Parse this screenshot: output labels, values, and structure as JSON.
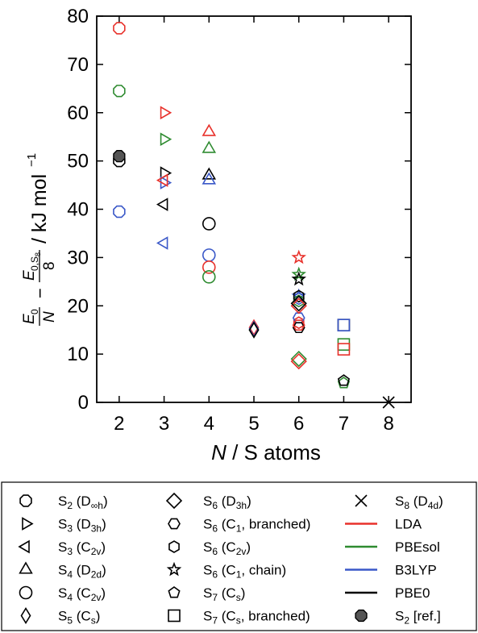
{
  "chart_data": {
    "type": "scatter",
    "xlabel": "N / S atoms",
    "ylabel": "E0/N − E0,S8/8 / kJ mol−1",
    "xlim": [
      1.5,
      8.5
    ],
    "ylim": [
      0,
      80
    ],
    "xticks": [
      2,
      3,
      4,
      5,
      6,
      7,
      8
    ],
    "yticks": [
      0,
      10,
      20,
      30,
      40,
      50,
      60,
      70,
      80
    ],
    "grid": false,
    "legend_position": "bottom",
    "colors": {
      "LDA": "#e8312b",
      "PBEsol": "#2e8b30",
      "B3LYP": "#3a58c8",
      "PBE0": "#000000",
      "ref": "#555555"
    },
    "functionals": [
      "LDA",
      "PBEsol",
      "B3LYP",
      "PBE0"
    ],
    "structures": [
      {
        "key": "S2_Dinfh",
        "marker": "octagon",
        "name": "S2 (D∞h)"
      },
      {
        "key": "S3_D3h",
        "marker": "triangle-right",
        "name": "S3 (D3h)"
      },
      {
        "key": "S3_C2v",
        "marker": "triangle-left",
        "name": "S3 (C2v)"
      },
      {
        "key": "S4_D2d",
        "marker": "triangle-up",
        "name": "S4 (D2d)"
      },
      {
        "key": "S4_C2v",
        "marker": "circle",
        "name": "S4 (C2v)"
      },
      {
        "key": "S5_Cs",
        "marker": "thin-diamond",
        "name": "S5 (Cs)"
      },
      {
        "key": "S6_D3h",
        "marker": "diamond",
        "name": "S6 (D3h)"
      },
      {
        "key": "S6_C1_branched",
        "marker": "hexagon-flat",
        "name": "S6 (C1, branched)"
      },
      {
        "key": "S6_C2v",
        "marker": "hexagon-pointy",
        "name": "S6 (C2v)"
      },
      {
        "key": "S6_C1_chain",
        "marker": "star",
        "name": "S6 (C1, chain)"
      },
      {
        "key": "S7_Cs",
        "marker": "pentagon",
        "name": "S7 (Cs)"
      },
      {
        "key": "S7_Cs_branched",
        "marker": "square",
        "name": "S7 (Cs, branched)"
      },
      {
        "key": "S8_D4d",
        "marker": "x",
        "name": "S8 (D4d)"
      },
      {
        "key": "S2_ref",
        "marker": "octagon-filled",
        "name": "S2 [ref.]"
      }
    ],
    "series": [
      {
        "structure": "S2_Dinfh",
        "functional": "LDA",
        "x": 2,
        "y": 77.5
      },
      {
        "structure": "S2_Dinfh",
        "functional": "PBEsol",
        "x": 2,
        "y": 64.5
      },
      {
        "structure": "S2_Dinfh",
        "functional": "PBE0",
        "x": 2,
        "y": 50.0
      },
      {
        "structure": "S2_Dinfh",
        "functional": "B3LYP",
        "x": 2,
        "y": 39.5
      },
      {
        "structure": "S2_ref",
        "functional": "ref",
        "x": 2,
        "y": 51.0
      },
      {
        "structure": "S3_D3h",
        "functional": "LDA",
        "x": 3,
        "y": 60.0
      },
      {
        "structure": "S3_D3h",
        "functional": "PBEsol",
        "x": 3,
        "y": 54.5
      },
      {
        "structure": "S3_D3h",
        "functional": "PBE0",
        "x": 3,
        "y": 47.5
      },
      {
        "structure": "S3_D3h",
        "functional": "B3LYP",
        "x": 3,
        "y": 45.5
      },
      {
        "structure": "S3_C2v",
        "functional": "LDA",
        "x": 3,
        "y": 46.0
      },
      {
        "structure": "S3_C2v",
        "functional": "PBE0",
        "x": 3,
        "y": 41.0
      },
      {
        "structure": "S3_C2v",
        "functional": "B3LYP",
        "x": 3,
        "y": 33.0
      },
      {
        "structure": "S4_D2d",
        "functional": "LDA",
        "x": 4,
        "y": 56.0
      },
      {
        "structure": "S4_D2d",
        "functional": "PBEsol",
        "x": 4,
        "y": 52.5
      },
      {
        "structure": "S4_D2d",
        "functional": "PBE0",
        "x": 4,
        "y": 47.0
      },
      {
        "structure": "S4_D2d",
        "functional": "B3LYP",
        "x": 4,
        "y": 46.0
      },
      {
        "structure": "S4_C2v",
        "functional": "PBE0",
        "x": 4,
        "y": 37.0
      },
      {
        "structure": "S4_C2v",
        "functional": "B3LYP",
        "x": 4,
        "y": 30.5
      },
      {
        "structure": "S4_C2v",
        "functional": "LDA",
        "x": 4,
        "y": 28.0
      },
      {
        "structure": "S4_C2v",
        "functional": "PBEsol",
        "x": 4,
        "y": 26.0
      },
      {
        "structure": "S5_Cs",
        "functional": "LDA",
        "x": 5,
        "y": 15.5
      },
      {
        "structure": "S5_Cs",
        "functional": "PBEsol",
        "x": 5,
        "y": 15.0
      },
      {
        "structure": "S5_Cs",
        "functional": "B3LYP",
        "x": 5,
        "y": 15.2
      },
      {
        "structure": "S5_Cs",
        "functional": "PBE0",
        "x": 5,
        "y": 15.0
      },
      {
        "structure": "S6_C1_chain",
        "functional": "LDA",
        "x": 6,
        "y": 30.0
      },
      {
        "structure": "S6_C1_chain",
        "functional": "PBEsol",
        "x": 6,
        "y": 26.5
      },
      {
        "structure": "S6_C1_chain",
        "functional": "PBE0",
        "x": 6,
        "y": 25.5
      },
      {
        "structure": "S6_C1_chain",
        "functional": "B3LYP",
        "x": 6,
        "y": 22.0
      },
      {
        "structure": "S6_C2v",
        "functional": "B3LYP",
        "x": 6,
        "y": 21.5
      },
      {
        "structure": "S6_C2v",
        "functional": "PBEsol",
        "x": 6,
        "y": 21.0
      },
      {
        "structure": "S6_C2v",
        "functional": "PBE0",
        "x": 6,
        "y": 22.0
      },
      {
        "structure": "S6_C2v",
        "functional": "LDA",
        "x": 6,
        "y": 16.5
      },
      {
        "structure": "S6_C1_branched",
        "functional": "B3LYP",
        "x": 6,
        "y": 17.5
      },
      {
        "structure": "S6_C1_branched",
        "functional": "PBE0",
        "x": 6,
        "y": 15.5
      },
      {
        "structure": "S6_C1_branched",
        "functional": "LDA",
        "x": 6,
        "y": 16.0
      },
      {
        "structure": "S6_D3h",
        "functional": "LDA",
        "x": 6,
        "y": 20.0
      },
      {
        "structure": "S6_D3h",
        "functional": "PBE0",
        "x": 6,
        "y": 20.5
      },
      {
        "structure": "S6_D3h",
        "functional": "PBEsol",
        "x": 6,
        "y": 9.0
      },
      {
        "structure": "S6_D3h",
        "functional": "LDA",
        "x": 6,
        "y": 8.5
      },
      {
        "structure": "S7_Cs_branched",
        "functional": "PBE0",
        "x": 7,
        "y": 16.0
      },
      {
        "structure": "S7_Cs_branched",
        "functional": "B3LYP",
        "x": 7,
        "y": 16.0
      },
      {
        "structure": "S7_Cs_branched",
        "functional": "PBEsol",
        "x": 7,
        "y": 12.0
      },
      {
        "structure": "S7_Cs_branched",
        "functional": "LDA",
        "x": 7,
        "y": 11.0
      },
      {
        "structure": "S7_Cs",
        "functional": "PBEsol",
        "x": 7,
        "y": 4.0
      },
      {
        "structure": "S7_Cs",
        "functional": "PBE0",
        "x": 7,
        "y": 4.5
      },
      {
        "structure": "S8_D4d",
        "functional": "PBE0",
        "x": 8,
        "y": 0.0
      }
    ]
  },
  "legend": {
    "columns": [
      [
        {
          "marker": "octagon",
          "base": "S",
          "sub": "2",
          "rest": " (D",
          "sym": "∞h",
          "close": ")"
        },
        {
          "marker": "triangle-right",
          "base": "S",
          "sub": "3",
          "rest": " (D",
          "sym": "3h",
          "close": ")"
        },
        {
          "marker": "triangle-left",
          "base": "S",
          "sub": "3",
          "rest": " (C",
          "sym": "2v",
          "close": ")"
        },
        {
          "marker": "triangle-up",
          "base": "S",
          "sub": "4",
          "rest": " (D",
          "sym": "2d",
          "close": ")"
        },
        {
          "marker": "circle",
          "base": "S",
          "sub": "4",
          "rest": " (C",
          "sym": "2v",
          "close": ")"
        },
        {
          "marker": "thin-diamond",
          "base": "S",
          "sub": "5",
          "rest": " (C",
          "sym": "s",
          "close": ")"
        }
      ],
      [
        {
          "marker": "diamond",
          "base": "S",
          "sub": "6",
          "rest": " (D",
          "sym": "3h",
          "close": ")"
        },
        {
          "marker": "hexagon-flat",
          "base": "S",
          "sub": "6",
          "rest": " (C",
          "sym": "1",
          "close": ", branched)"
        },
        {
          "marker": "hexagon-pointy",
          "base": "S",
          "sub": "6",
          "rest": " (C",
          "sym": "2v",
          "close": ")"
        },
        {
          "marker": "star",
          "base": "S",
          "sub": "6",
          "rest": " (C",
          "sym": "1",
          "close": ", chain)"
        },
        {
          "marker": "pentagon",
          "base": "S",
          "sub": "7",
          "rest": " (C",
          "sym": "s",
          "close": ")"
        },
        {
          "marker": "square",
          "base": "S",
          "sub": "7",
          "rest": " (C",
          "sym": "s",
          "close": ", branched)"
        }
      ],
      [
        {
          "marker": "x",
          "base": "S",
          "sub": "8",
          "rest": " (D",
          "sym": "4d",
          "close": ")"
        },
        {
          "line": "#e8312b",
          "label": "LDA"
        },
        {
          "line": "#2e8b30",
          "label": "PBEsol"
        },
        {
          "line": "#3a58c8",
          "label": "B3LYP"
        },
        {
          "line": "#000000",
          "label": "PBE0"
        },
        {
          "marker": "octagon-filled",
          "base": "S",
          "sub": "2",
          "rest": " [ref.]",
          "sym": "",
          "close": ""
        }
      ]
    ]
  }
}
